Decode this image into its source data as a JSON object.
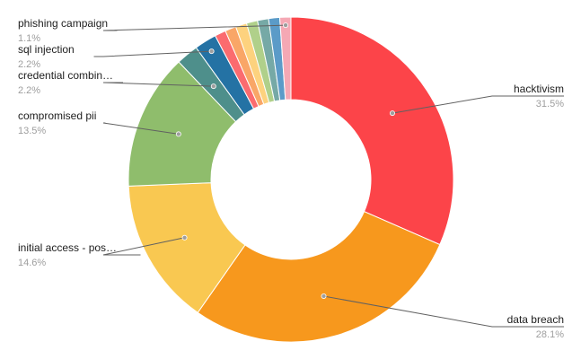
{
  "chart_data": {
    "type": "pie",
    "donut": true,
    "title": "",
    "legend": "none",
    "slices": [
      {
        "label": "hacktivism",
        "value": 31.5,
        "display_pct": "31.5%",
        "color": "#fc4449"
      },
      {
        "label": "data breach",
        "value": 28.1,
        "display_pct": "28.1%",
        "color": "#f7981d"
      },
      {
        "label": "initial access - pos…",
        "value": 14.6,
        "display_pct": "14.6%",
        "color": "#f9c851"
      },
      {
        "label": "compromised pii",
        "value": 13.5,
        "display_pct": "13.5%",
        "color": "#8fbd6c"
      },
      {
        "label": "credential combin…",
        "value": 2.2,
        "display_pct": "2.2%",
        "color": "#4e8f8b"
      },
      {
        "label": "sql injection",
        "value": 2.2,
        "display_pct": "2.2%",
        "color": "#2472a4"
      },
      {
        "label": "",
        "value": 1.1,
        "color": "#fb6b6f"
      },
      {
        "label": "",
        "value": 1.1,
        "color": "#f9a667"
      },
      {
        "label": "",
        "value": 1.1,
        "color": "#fdd27e"
      },
      {
        "label": "",
        "value": 1.1,
        "color": "#b0d08a"
      },
      {
        "label": "",
        "value": 1.1,
        "color": "#76a9a6"
      },
      {
        "label": "",
        "value": 1.1,
        "color": "#5b9bc8"
      },
      {
        "label": "phishing campaign",
        "value": 1.1,
        "display_pct": "1.1%",
        "color": "#f5a8b4"
      }
    ]
  }
}
